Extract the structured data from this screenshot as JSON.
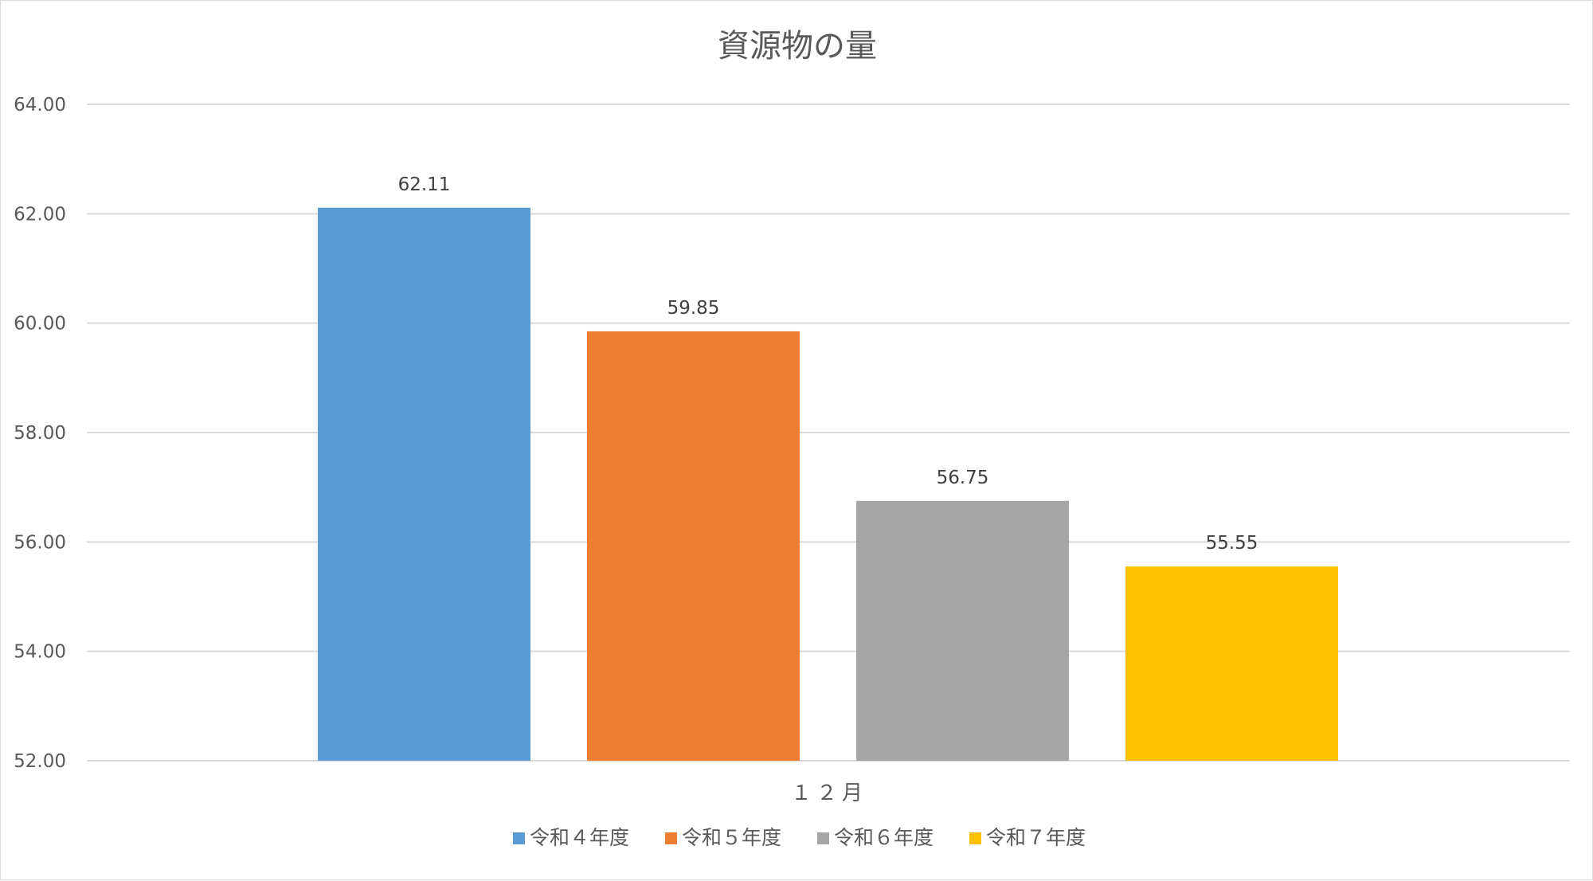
{
  "chart_data": {
    "type": "bar",
    "title": "資源物の量",
    "categories": [
      "１２月"
    ],
    "series": [
      {
        "name": "令和４年度",
        "values": [
          62.11
        ],
        "color": "#5B9BD5"
      },
      {
        "name": "令和５年度",
        "values": [
          59.85
        ],
        "color": "#ED7D31"
      },
      {
        "name": "令和６年度",
        "values": [
          56.75
        ],
        "color": "#A5A5A5"
      },
      {
        "name": "令和７年度",
        "values": [
          55.55
        ],
        "color": "#FFC000"
      }
    ],
    "data_labels": [
      "62.11",
      "59.85",
      "56.75",
      "55.55"
    ],
    "ylim": [
      52,
      64
    ],
    "yticks": [
      "52.00",
      "54.00",
      "56.00",
      "58.00",
      "60.00",
      "62.00",
      "64.00"
    ],
    "grid": true,
    "legend_position": "bottom"
  }
}
